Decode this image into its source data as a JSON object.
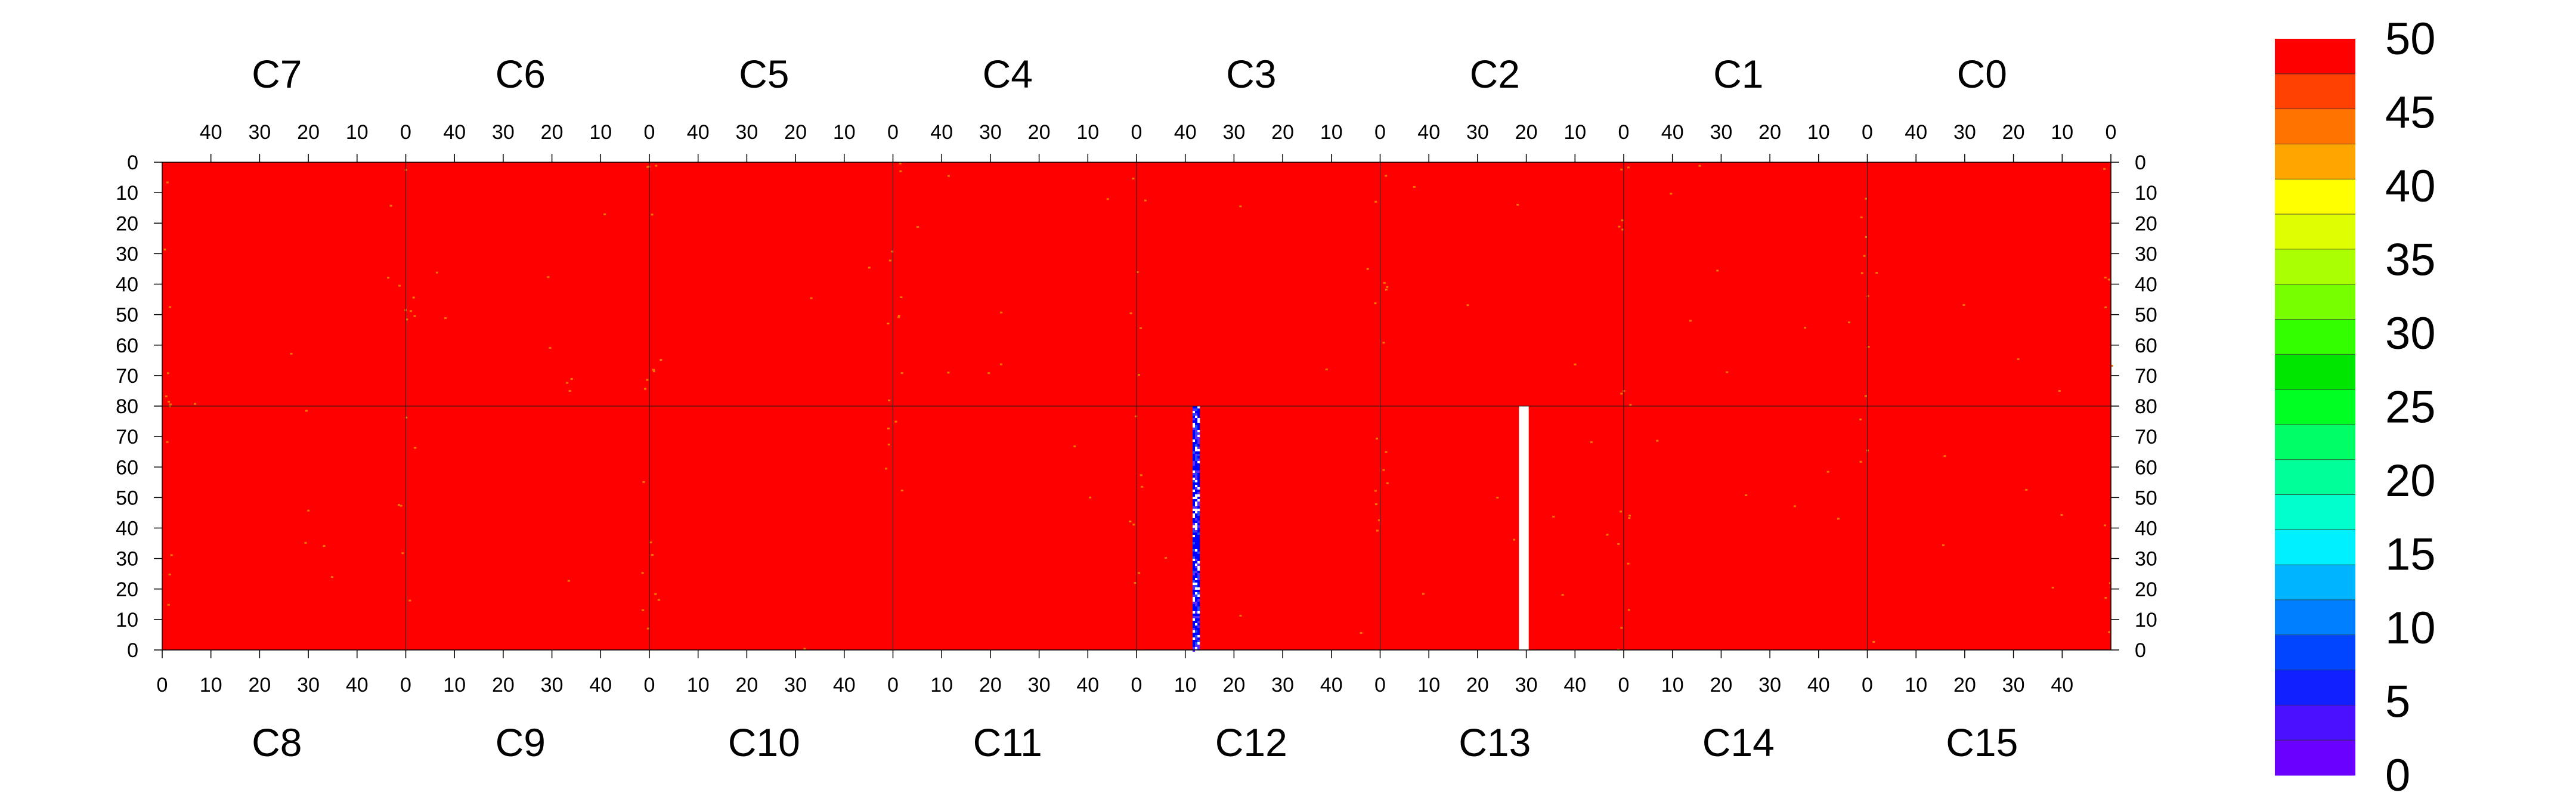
{
  "chart_data": {
    "type": "heatmap",
    "top_panels": {
      "labels": [
        "C7",
        "C6",
        "C5",
        "C4",
        "C3",
        "C2",
        "C1",
        "C0"
      ],
      "x_axis": {
        "range": [
          50,
          0
        ],
        "tick_values": [
          40,
          30,
          20,
          10,
          0
        ],
        "tick_labels": [
          "40",
          "30",
          "20",
          "10",
          "0"
        ]
      },
      "y_axis": {
        "range": [
          0,
          80
        ],
        "tick_values": [
          0,
          10,
          20,
          30,
          40,
          50,
          60,
          70,
          80
        ],
        "tick_labels": [
          "0",
          "10",
          "20",
          "30",
          "40",
          "50",
          "60",
          "70",
          "80"
        ]
      }
    },
    "bottom_panels": {
      "labels": [
        "C8",
        "C9",
        "C10",
        "C11",
        "C12",
        "C13",
        "C14",
        "C15"
      ],
      "x_axis": {
        "range": [
          0,
          50
        ],
        "tick_values": [
          0,
          10,
          20,
          30,
          40
        ],
        "tick_labels": [
          "0",
          "10",
          "20",
          "30",
          "40"
        ]
      },
      "y_axis": {
        "range": [
          80,
          0
        ],
        "tick_values": [
          0,
          10,
          20,
          30,
          40,
          50,
          60,
          70
        ],
        "tick_labels": [
          "0",
          "10",
          "20",
          "30",
          "40",
          "50",
          "60",
          "70"
        ]
      }
    },
    "z_range": [
      0,
      50
    ],
    "default_value": 50,
    "grid": false,
    "legend_placement": "right",
    "colorbar": {
      "tick_values": [
        0,
        5,
        10,
        15,
        20,
        25,
        30,
        35,
        40,
        45,
        50
      ],
      "tick_labels": [
        "0",
        "5",
        "10",
        "15",
        "20",
        "25",
        "30",
        "35",
        "40",
        "45",
        "50"
      ],
      "colors": [
        "#6a00ff",
        "#4a10ff",
        "#1020ff",
        "#0044ff",
        "#0080ff",
        "#00b4ff",
        "#00f0ff",
        "#00ffcc",
        "#00ff99",
        "#00ff66",
        "#00ff22",
        "#00e600",
        "#33ff00",
        "#77ff00",
        "#aaff00",
        "#ddff00",
        "#ffff00",
        "#ffa500",
        "#ff7300",
        "#ff4000",
        "#ff0000"
      ]
    },
    "features": [
      {
        "panel": "C12",
        "kind": "low_value_column",
        "x_range": [
          11.5,
          13
        ],
        "y_range": [
          0,
          80
        ],
        "value_range": [
          0,
          10
        ],
        "color": "#0000ff"
      },
      {
        "panel": "C13",
        "kind": "empty_column",
        "x_range": [
          28.5,
          30.5
        ],
        "y_range": [
          0,
          80
        ],
        "color": "#ffffff"
      }
    ],
    "colors": {
      "high": "#ff0000",
      "speckle": "#f07800",
      "low": "#0000ff",
      "empty": "#ffffff"
    }
  }
}
